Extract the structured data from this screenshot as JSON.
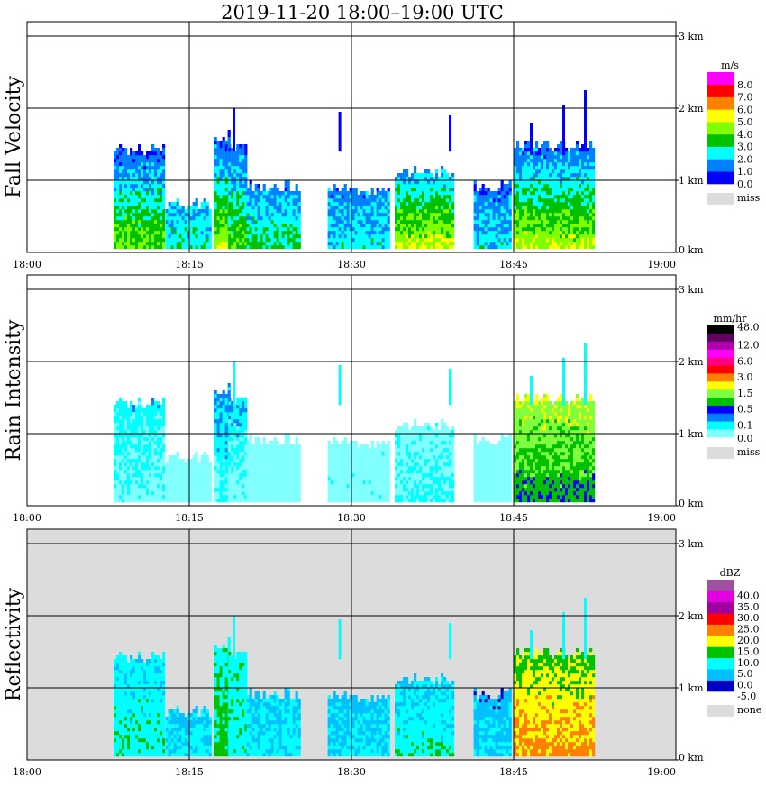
{
  "title": "2019-11-20   18:00–19:00 UTC",
  "chart_data": {
    "type": "heatmap",
    "title": "2019-11-20   18:00–19:00 UTC",
    "x_ticks": [
      "18:00",
      "18:15",
      "18:30",
      "18:45",
      "19:00"
    ],
    "x_range_minutes": [
      0,
      60
    ],
    "y_ticks": [
      "0 km",
      "1 km",
      "2 km",
      "3 km"
    ],
    "y_range_km": [
      0,
      3.2
    ],
    "panels": [
      {
        "key": "fv",
        "ylabel": "Fall Velocity",
        "unit": "m/s",
        "colorbar_labels": [
          "0.0",
          "1.0",
          "2.0",
          "3.0",
          "4.0",
          "5.0",
          "6.0",
          "7.0",
          "8.0"
        ],
        "colors": [
          "#0000ff",
          "#0080ff",
          "#00ffff",
          "#00c000",
          "#80ff00",
          "#ffff00",
          "#ff8000",
          "#ff0000",
          "#ff00ff"
        ],
        "thresholds": [
          0,
          1,
          2,
          3,
          4,
          5,
          6,
          7,
          8
        ],
        "missing_label": "miss",
        "missing_color": "#dcdcdc",
        "background": "#ffffff"
      },
      {
        "key": "ri",
        "ylabel": "Rain Intensity",
        "unit": "mm/hr",
        "colorbar_labels": [
          "0.0",
          "0.1",
          "0.5",
          "1.5",
          "3.0",
          "6.0",
          "12.0",
          "48.0"
        ],
        "colors": [
          "#80ffff",
          "#00ffff",
          "#0080ff",
          "#0000ff",
          "#00c000",
          "#80ff40",
          "#ffff00",
          "#ff8000",
          "#ff0000",
          "#ff0080",
          "#ff00ff",
          "#b000b0",
          "#600060",
          "#000000"
        ],
        "thresholds": [
          0,
          1,
          2,
          3,
          4,
          5,
          6,
          7,
          8,
          9,
          10,
          11,
          12,
          13
        ],
        "missing_label": "miss",
        "missing_color": "#dcdcdc",
        "background": "#ffffff"
      },
      {
        "key": "dbz",
        "ylabel": "Reflectivity",
        "unit": "dBZ",
        "colorbar_labels": [
          "-5.0",
          "0.0",
          "5.0",
          "10.0",
          "15.0",
          "20.0",
          "25.0",
          "30.0",
          "35.0",
          "40.0"
        ],
        "colors": [
          "#0000c0",
          "#00c0ff",
          "#00ffff",
          "#00c000",
          "#ffff00",
          "#ff8000",
          "#ff0000",
          "#a000a0",
          "#e000e0",
          "#a050a0"
        ],
        "thresholds": [
          -5,
          0,
          5,
          10,
          15,
          20,
          25,
          30,
          35,
          40
        ],
        "missing_label": "none",
        "missing_color": "#dcdcdc",
        "background": "#dcdcdc"
      }
    ],
    "echo_cells": [
      {
        "t0": 8.0,
        "t1": 12.7,
        "top": 1.42,
        "fv": [
          1.0,
          4.5
        ],
        "ri": [
          1.5,
          0.6
        ],
        "dbz": [
          6,
          9
        ]
      },
      {
        "t0": 12.8,
        "t1": 17.0,
        "top": 0.65,
        "fv": [
          2.0,
          2.8
        ],
        "ri": [
          0.3,
          0.2
        ],
        "dbz": [
          4,
          6
        ]
      },
      {
        "t0": 17.3,
        "t1": 18.6,
        "top": 1.6,
        "fv": [
          1.0,
          4.8
        ],
        "ri": [
          2.5,
          0.6
        ],
        "dbz": [
          9,
          12
        ]
      },
      {
        "t0": 18.6,
        "t1": 20.3,
        "top": 1.45,
        "fv": [
          1.2,
          4.2
        ],
        "ri": [
          2.0,
          0.3
        ],
        "dbz": [
          8,
          8
        ]
      },
      {
        "t0": 20.3,
        "t1": 25.3,
        "top": 0.9,
        "fv": [
          1.5,
          3.5
        ],
        "ri": [
          0.3,
          0.3
        ],
        "dbz": [
          4,
          7
        ]
      },
      {
        "t0": 27.8,
        "t1": 33.5,
        "top": 0.85,
        "fv": [
          1.5,
          2.6
        ],
        "ri": [
          0.3,
          0.4
        ],
        "dbz": [
          3,
          6
        ]
      },
      {
        "t0": 34.0,
        "t1": 39.5,
        "top": 1.1,
        "fv": [
          1.8,
          5.2
        ],
        "ri": [
          0.4,
          1.2
        ],
        "dbz": [
          4,
          9
        ]
      },
      {
        "t0": 41.3,
        "t1": 44.8,
        "top": 0.9,
        "fv": [
          1.2,
          2.5
        ],
        "ri": [
          0.3,
          0.3
        ],
        "dbz": [
          2,
          5
        ]
      },
      {
        "t0": 45.0,
        "t1": 52.3,
        "top": 1.45,
        "fv": [
          1.3,
          5.0
        ],
        "ri": [
          6.0,
          4.0
        ],
        "dbz": [
          14,
          22
        ]
      }
    ],
    "upper_spikes_minutes_km": [
      [
        19.0,
        2.0
      ],
      [
        28.8,
        1.95
      ],
      [
        39.0,
        1.9
      ],
      [
        46.5,
        1.8
      ],
      [
        49.5,
        2.05
      ],
      [
        51.5,
        2.2
      ]
    ]
  }
}
